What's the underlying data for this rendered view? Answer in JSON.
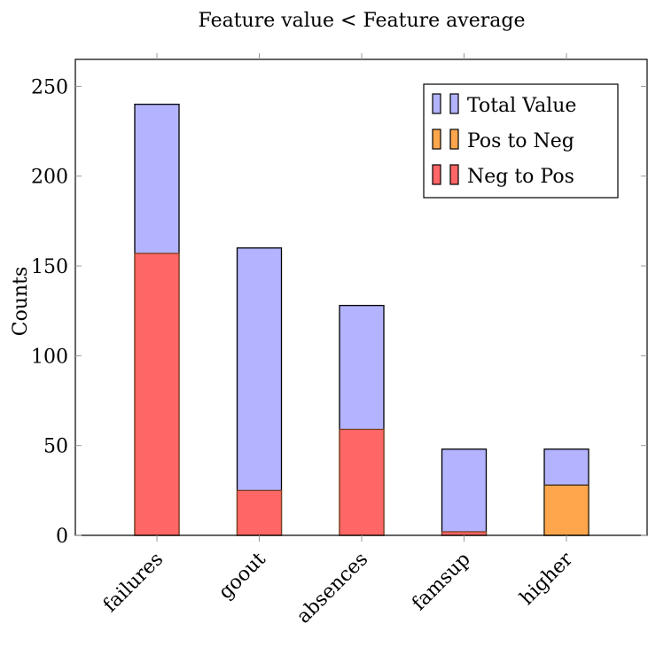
{
  "chart_data": {
    "type": "bar",
    "title": "Feature value < Feature average",
    "xlabel": "",
    "ylabel": "Counts",
    "ylim": [
      0,
      265
    ],
    "yticks": [
      0,
      50,
      100,
      150,
      200,
      250
    ],
    "categories": [
      "failures",
      "goout",
      "absences",
      "famsup",
      "higher"
    ],
    "series": [
      {
        "name": "Total Value",
        "color": "#b3b3ff",
        "stroke": "#000000",
        "values": [
          240,
          160,
          128,
          48,
          48
        ]
      },
      {
        "name": "Pos to Neg",
        "color": "#ffa64d",
        "stroke": "#3a2a10",
        "values": [
          0,
          0,
          0,
          0,
          28
        ]
      },
      {
        "name": "Neg to Pos",
        "color": "#ff6666",
        "stroke": "#7a4020",
        "values": [
          157,
          25,
          59,
          2,
          0
        ]
      }
    ],
    "legend_position": "top-right",
    "grid": false
  }
}
